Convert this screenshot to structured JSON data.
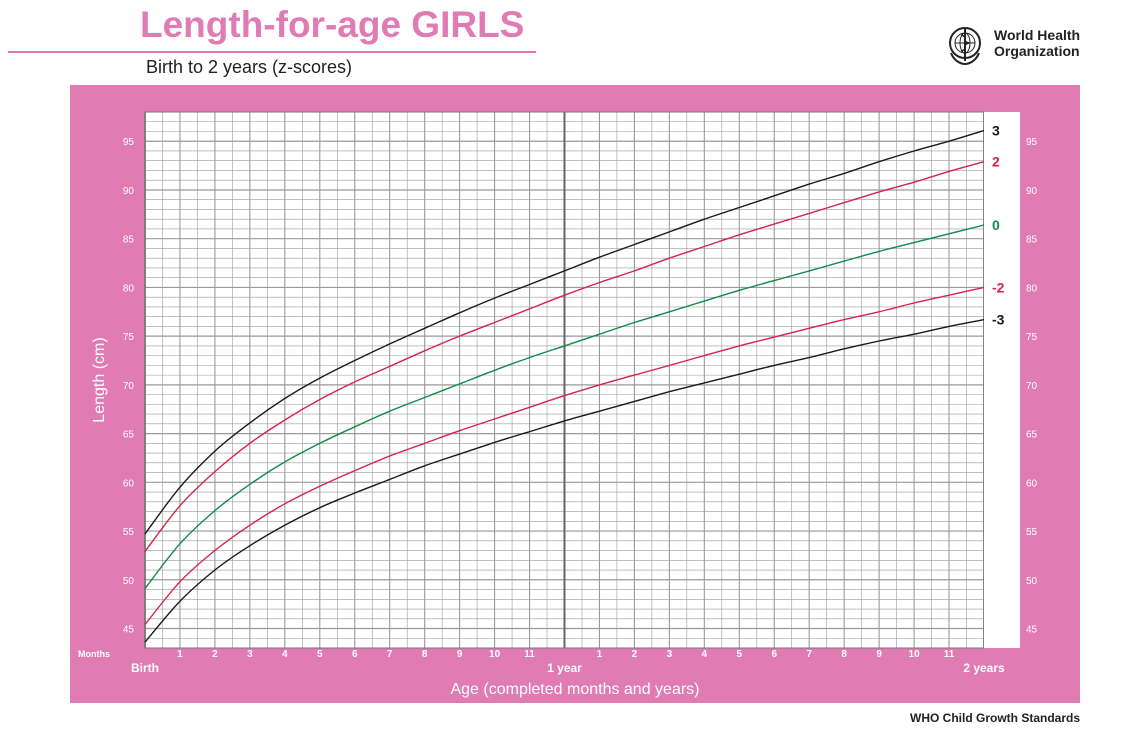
{
  "header": {
    "title": "Length-for-age GIRLS",
    "subtitle": "Birth to 2 years (z-scores)"
  },
  "logo": {
    "line1": "World Health",
    "line2": "Organization",
    "icon": "who-emblem-icon"
  },
  "footer": {
    "text": "WHO Child Growth Standards"
  },
  "colors": {
    "panel": "#e07bb4",
    "grid": "#9a9a9a",
    "black": "#1a1a1a",
    "red": "#d6244e",
    "green": "#0f8a4a"
  },
  "chart_data": {
    "type": "line",
    "xlabel": "Age (completed months and years)",
    "ylabel": "Length (cm)",
    "months_label": "Months",
    "x_unit": "months",
    "xlim": [
      0,
      24
    ],
    "ylim": [
      43,
      98
    ],
    "y_ticks": [
      45,
      50,
      55,
      60,
      65,
      70,
      75,
      80,
      85,
      90,
      95
    ],
    "x_tick_labels": [
      {
        "month": 0,
        "label": "Birth"
      },
      {
        "month": 1,
        "label": "1"
      },
      {
        "month": 2,
        "label": "2"
      },
      {
        "month": 3,
        "label": "3"
      },
      {
        "month": 4,
        "label": "4"
      },
      {
        "month": 5,
        "label": "5"
      },
      {
        "month": 6,
        "label": "6"
      },
      {
        "month": 7,
        "label": "7"
      },
      {
        "month": 8,
        "label": "8"
      },
      {
        "month": 9,
        "label": "9"
      },
      {
        "month": 10,
        "label": "10"
      },
      {
        "month": 11,
        "label": "11"
      },
      {
        "month": 12,
        "label": "1 year"
      },
      {
        "month": 13,
        "label": "1"
      },
      {
        "month": 14,
        "label": "2"
      },
      {
        "month": 15,
        "label": "3"
      },
      {
        "month": 16,
        "label": "4"
      },
      {
        "month": 17,
        "label": "5"
      },
      {
        "month": 18,
        "label": "6"
      },
      {
        "month": 19,
        "label": "7"
      },
      {
        "month": 20,
        "label": "8"
      },
      {
        "month": 21,
        "label": "9"
      },
      {
        "month": 22,
        "label": "10"
      },
      {
        "month": 23,
        "label": "11"
      },
      {
        "month": 24,
        "label": "2 years"
      }
    ],
    "x": [
      0,
      1,
      2,
      3,
      4,
      5,
      6,
      7,
      8,
      9,
      10,
      11,
      12,
      13,
      14,
      15,
      16,
      17,
      18,
      19,
      20,
      21,
      22,
      23,
      24
    ],
    "series": [
      {
        "name": "3",
        "color": "black",
        "values": [
          54.7,
          59.5,
          63.2,
          66.1,
          68.6,
          70.7,
          72.5,
          74.2,
          75.8,
          77.4,
          78.9,
          80.3,
          81.7,
          83.1,
          84.4,
          85.7,
          87.0,
          88.2,
          89.4,
          90.6,
          91.7,
          92.9,
          94.0,
          95.0,
          96.1
        ]
      },
      {
        "name": "2",
        "color": "red",
        "values": [
          52.9,
          57.6,
          61.1,
          64.0,
          66.4,
          68.5,
          70.3,
          71.9,
          73.5,
          75.0,
          76.4,
          77.8,
          79.2,
          80.5,
          81.7,
          83.0,
          84.2,
          85.4,
          86.5,
          87.6,
          88.7,
          89.8,
          90.8,
          91.9,
          92.9
        ]
      },
      {
        "name": "0",
        "color": "green",
        "values": [
          49.1,
          53.7,
          57.1,
          59.8,
          62.1,
          64.0,
          65.7,
          67.3,
          68.7,
          70.1,
          71.5,
          72.8,
          74.0,
          75.2,
          76.4,
          77.5,
          78.6,
          79.7,
          80.7,
          81.7,
          82.7,
          83.7,
          84.6,
          85.5,
          86.4
        ]
      },
      {
        "name": "-2",
        "color": "red",
        "values": [
          45.4,
          49.8,
          53.0,
          55.6,
          57.8,
          59.6,
          61.2,
          62.7,
          64.0,
          65.3,
          66.5,
          67.7,
          68.9,
          70.0,
          71.0,
          72.0,
          73.0,
          74.0,
          74.9,
          75.8,
          76.7,
          77.5,
          78.4,
          79.2,
          80.0
        ]
      },
      {
        "name": "-3",
        "color": "black",
        "values": [
          43.6,
          47.8,
          51.0,
          53.5,
          55.6,
          57.4,
          58.9,
          60.3,
          61.7,
          62.9,
          64.1,
          65.2,
          66.3,
          67.3,
          68.3,
          69.3,
          70.2,
          71.1,
          72.0,
          72.8,
          73.7,
          74.5,
          75.2,
          76.0,
          76.7
        ]
      }
    ]
  }
}
